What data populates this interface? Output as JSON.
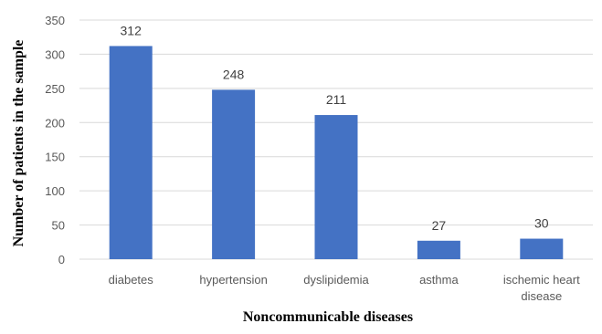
{
  "chart_data": {
    "type": "bar",
    "title": "",
    "xlabel": "Noncommunicable diseases",
    "ylabel": "Number of patients in the sample",
    "categories": [
      [
        "diabetes"
      ],
      [
        "hypertension"
      ],
      [
        "dyslipidemia"
      ],
      [
        "asthma"
      ],
      [
        "ischemic heart",
        "disease"
      ]
    ],
    "values": [
      312,
      248,
      211,
      27,
      30
    ],
    "ylim": [
      0,
      350
    ],
    "yticks": [
      0,
      50,
      100,
      150,
      200,
      250,
      300,
      350
    ],
    "grid": true,
    "legend": "none",
    "bar_color": "#4472C4",
    "grid_color": "#d9d9d9"
  }
}
